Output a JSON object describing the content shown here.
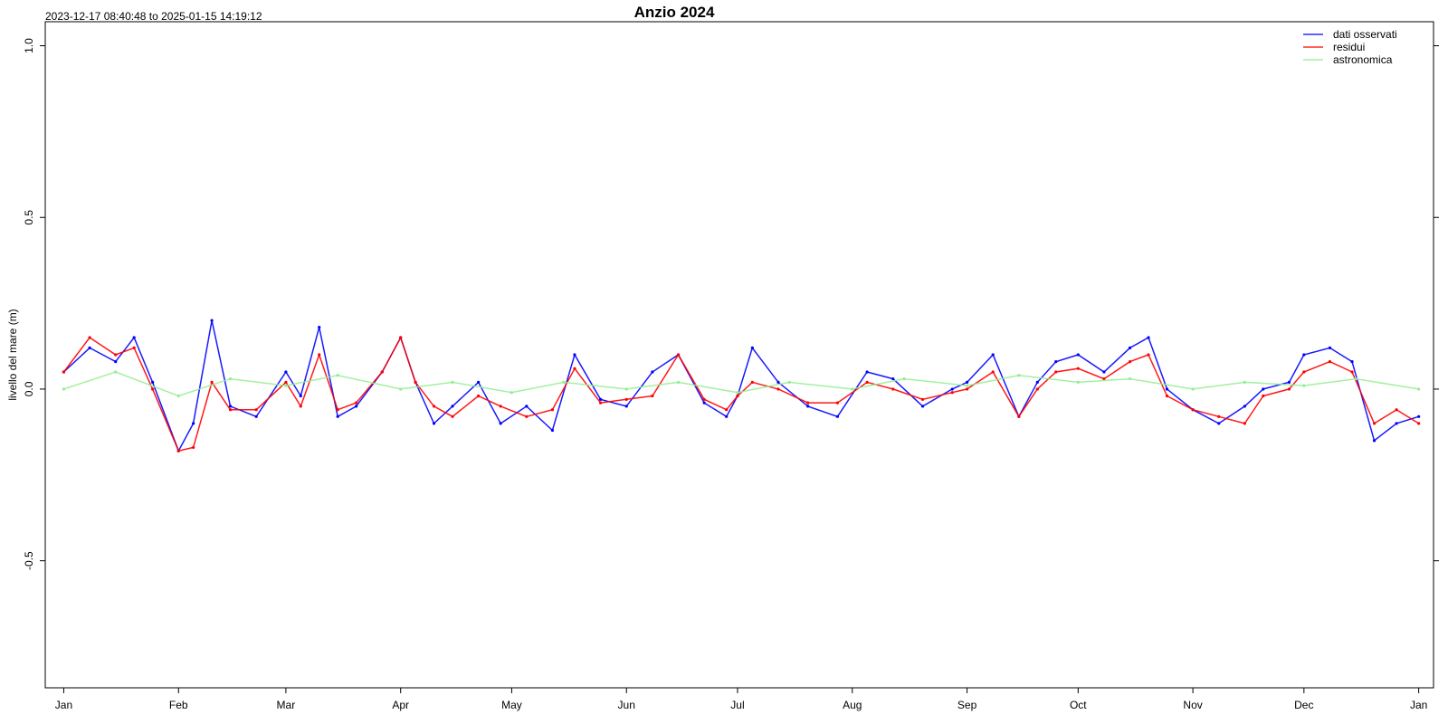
{
  "chart_data": {
    "type": "line",
    "title": "Anzio 2024",
    "date_range": "2023-12-17 08:40:48 to 2025-01-15 14:19:12",
    "ylabel": "livello del mare (m)",
    "xlabel": "",
    "ylim": [
      -0.87,
      1.07
    ],
    "xlim": [
      "2023-12-27",
      "2025-01-05"
    ],
    "y_ticks": [
      {
        "value": -0.5,
        "label": "-0.5"
      },
      {
        "value": 0.0,
        "label": "0.0"
      },
      {
        "value": 0.5,
        "label": "0.5"
      },
      {
        "value": 1.0,
        "label": "1.0"
      }
    ],
    "x_ticks": [
      {
        "date": "2024-01-01",
        "label": "Jan"
      },
      {
        "date": "2024-02-01",
        "label": "Feb"
      },
      {
        "date": "2024-03-01",
        "label": "Mar"
      },
      {
        "date": "2024-04-01",
        "label": "Apr"
      },
      {
        "date": "2024-05-01",
        "label": "May"
      },
      {
        "date": "2024-06-01",
        "label": "Jun"
      },
      {
        "date": "2024-07-01",
        "label": "Jul"
      },
      {
        "date": "2024-08-01",
        "label": "Aug"
      },
      {
        "date": "2024-09-01",
        "label": "Sep"
      },
      {
        "date": "2024-10-01",
        "label": "Oct"
      },
      {
        "date": "2024-11-01",
        "label": "Nov"
      },
      {
        "date": "2024-12-01",
        "label": "Dec"
      },
      {
        "date": "2025-01-01",
        "label": "Jan"
      }
    ],
    "legend_position": "top-right",
    "grid": false,
    "series": [
      {
        "name": "dati osservati",
        "color": "#0000ff",
        "x": [
          "2024-01-01",
          "2024-01-08",
          "2024-01-15",
          "2024-01-20",
          "2024-01-25",
          "2024-02-01",
          "2024-02-05",
          "2024-02-10",
          "2024-02-15",
          "2024-02-22",
          "2024-03-01",
          "2024-03-05",
          "2024-03-10",
          "2024-03-15",
          "2024-03-20",
          "2024-03-27",
          "2024-04-01",
          "2024-04-05",
          "2024-04-10",
          "2024-04-15",
          "2024-04-22",
          "2024-04-28",
          "2024-05-05",
          "2024-05-12",
          "2024-05-18",
          "2024-05-25",
          "2024-06-01",
          "2024-06-08",
          "2024-06-15",
          "2024-06-22",
          "2024-06-28",
          "2024-07-01",
          "2024-07-05",
          "2024-07-12",
          "2024-07-20",
          "2024-07-28",
          "2024-08-05",
          "2024-08-12",
          "2024-08-20",
          "2024-08-28",
          "2024-09-01",
          "2024-09-08",
          "2024-09-15",
          "2024-09-20",
          "2024-09-25",
          "2024-10-01",
          "2024-10-08",
          "2024-10-15",
          "2024-10-20",
          "2024-10-25",
          "2024-11-01",
          "2024-11-08",
          "2024-11-15",
          "2024-11-20",
          "2024-11-27",
          "2024-12-01",
          "2024-12-08",
          "2024-12-14",
          "2024-12-20",
          "2024-12-26",
          "2025-01-01"
        ],
        "values": [
          0.05,
          0.12,
          0.08,
          0.15,
          0.02,
          -0.18,
          -0.1,
          0.2,
          -0.05,
          -0.08,
          0.05,
          -0.02,
          0.18,
          -0.08,
          -0.05,
          0.05,
          0.15,
          0.02,
          -0.1,
          -0.05,
          0.02,
          -0.1,
          -0.05,
          -0.12,
          0.1,
          -0.03,
          -0.05,
          0.05,
          0.1,
          -0.04,
          -0.08,
          -0.02,
          0.12,
          0.02,
          -0.05,
          -0.08,
          0.05,
          0.03,
          -0.05,
          0.0,
          0.02,
          0.1,
          -0.08,
          0.02,
          0.08,
          0.1,
          0.05,
          0.12,
          0.15,
          0.0,
          -0.06,
          -0.1,
          -0.05,
          0.0,
          0.02,
          0.1,
          0.12,
          0.08,
          -0.15,
          -0.1,
          -0.08
        ]
      },
      {
        "name": "residui",
        "color": "#ff0000",
        "x": [
          "2024-01-01",
          "2024-01-08",
          "2024-01-15",
          "2024-01-20",
          "2024-01-25",
          "2024-02-01",
          "2024-02-05",
          "2024-02-10",
          "2024-02-15",
          "2024-02-22",
          "2024-03-01",
          "2024-03-05",
          "2024-03-10",
          "2024-03-15",
          "2024-03-20",
          "2024-03-27",
          "2024-04-01",
          "2024-04-05",
          "2024-04-10",
          "2024-04-15",
          "2024-04-22",
          "2024-04-28",
          "2024-05-05",
          "2024-05-12",
          "2024-05-18",
          "2024-05-25",
          "2024-06-01",
          "2024-06-08",
          "2024-06-15",
          "2024-06-22",
          "2024-06-28",
          "2024-07-01",
          "2024-07-05",
          "2024-07-12",
          "2024-07-20",
          "2024-07-28",
          "2024-08-05",
          "2024-08-12",
          "2024-08-20",
          "2024-08-28",
          "2024-09-01",
          "2024-09-08",
          "2024-09-15",
          "2024-09-20",
          "2024-09-25",
          "2024-10-01",
          "2024-10-08",
          "2024-10-15",
          "2024-10-20",
          "2024-10-25",
          "2024-11-01",
          "2024-11-08",
          "2024-11-15",
          "2024-11-20",
          "2024-11-27",
          "2024-12-01",
          "2024-12-08",
          "2024-12-14",
          "2024-12-20",
          "2024-12-26",
          "2025-01-01"
        ],
        "values": [
          0.05,
          0.15,
          0.1,
          0.12,
          0.0,
          -0.18,
          -0.17,
          0.02,
          -0.06,
          -0.06,
          0.02,
          -0.05,
          0.1,
          -0.06,
          -0.04,
          0.05,
          0.15,
          0.02,
          -0.05,
          -0.08,
          -0.02,
          -0.05,
          -0.08,
          -0.06,
          0.06,
          -0.04,
          -0.03,
          -0.02,
          0.1,
          -0.03,
          -0.06,
          -0.02,
          0.02,
          0.0,
          -0.04,
          -0.04,
          0.02,
          0.0,
          -0.03,
          -0.01,
          0.0,
          0.05,
          -0.08,
          0.0,
          0.05,
          0.06,
          0.03,
          0.08,
          0.1,
          -0.02,
          -0.06,
          -0.08,
          -0.1,
          -0.02,
          0.0,
          0.05,
          0.08,
          0.05,
          -0.1,
          -0.06,
          -0.1
        ]
      },
      {
        "name": "astronomica",
        "color": "#90ee90",
        "x": [
          "2024-01-01",
          "2024-01-15",
          "2024-02-01",
          "2024-02-15",
          "2024-03-01",
          "2024-03-15",
          "2024-04-01",
          "2024-04-15",
          "2024-05-01",
          "2024-05-15",
          "2024-06-01",
          "2024-06-15",
          "2024-07-01",
          "2024-07-15",
          "2024-08-01",
          "2024-08-15",
          "2024-09-01",
          "2024-09-15",
          "2024-10-01",
          "2024-10-15",
          "2024-11-01",
          "2024-11-15",
          "2024-12-01",
          "2024-12-15",
          "2025-01-01"
        ],
        "values": [
          0.0,
          0.05,
          -0.02,
          0.03,
          0.01,
          0.04,
          0.0,
          0.02,
          -0.01,
          0.02,
          0.0,
          0.02,
          -0.01,
          0.02,
          0.0,
          0.03,
          0.01,
          0.04,
          0.02,
          0.03,
          0.0,
          0.02,
          0.01,
          0.03,
          0.0
        ]
      }
    ]
  }
}
